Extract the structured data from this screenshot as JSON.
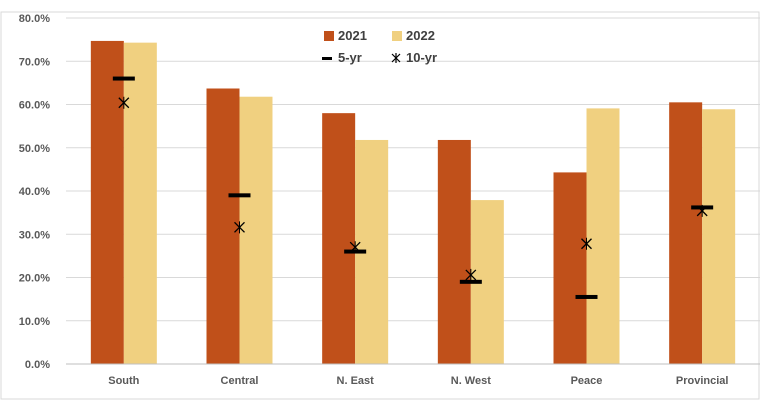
{
  "chart_data": {
    "type": "bar",
    "title": "",
    "xlabel": "",
    "ylabel": "",
    "categories": [
      "South",
      "Central",
      "N. East",
      "N. West",
      "Peace",
      "Provincial"
    ],
    "series": [
      {
        "name": "2021",
        "kind": "bar",
        "values": [
          74.7,
          63.7,
          58.0,
          51.8,
          44.3,
          60.5
        ],
        "color": "#c0501a"
      },
      {
        "name": "2022",
        "kind": "bar",
        "values": [
          74.3,
          61.8,
          51.8,
          37.9,
          59.1,
          58.9
        ],
        "color": "#f0d080"
      },
      {
        "name": "5-yr",
        "kind": "marker-dash",
        "values": [
          66.0,
          39.0,
          26.0,
          19.0,
          15.5,
          36.2
        ],
        "color": "#000000"
      },
      {
        "name": "10-yr",
        "kind": "marker-x",
        "values": [
          60.4,
          31.6,
          27.0,
          20.6,
          27.8,
          35.4
        ],
        "color": "#000000"
      }
    ],
    "ylim": [
      0,
      80
    ],
    "yticks": [
      "0.0%",
      "10.0%",
      "20.0%",
      "30.0%",
      "40.0%",
      "50.0%",
      "60.0%",
      "70.0%",
      "80.0%"
    ],
    "grid": "horizontal",
    "legend_position": "top-center"
  }
}
